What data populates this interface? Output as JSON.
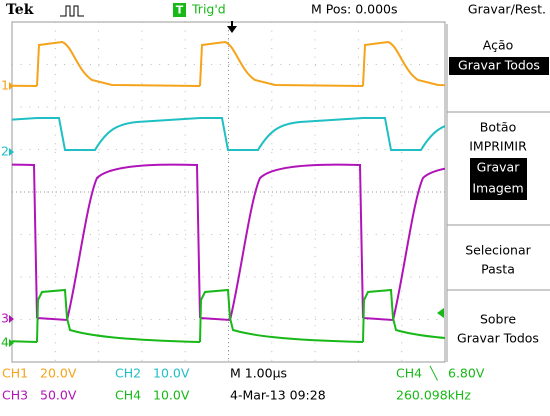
{
  "header": {
    "brand": "Tek",
    "trigger_icon": "T",
    "trigger_status": "Trig'd",
    "position": "M Pos: 0.000s",
    "menu_title": "Gravar/Rest."
  },
  "channel_markers": [
    "1",
    "2",
    "3",
    "4"
  ],
  "menu": [
    {
      "label": "Ação",
      "value": "Gravar Todos"
    },
    {
      "label": "Botão",
      "line2": "IMPRIMIR",
      "value": "Gravar",
      "value2": "Imagem"
    },
    {
      "label": "Selecionar",
      "line2": "Pasta"
    },
    {
      "label": "Sobre",
      "line2": "Gravar Todos"
    }
  ],
  "footer": {
    "ch1": "CH1",
    "ch1_scale": "20.0V",
    "ch2": "CH2",
    "ch2_scale": "10.0V",
    "timebase": "M 1.00µs",
    "trigger_source": "CH4",
    "trigger_slope": "╲",
    "trigger_level": "6.80V",
    "ch3": "CH3",
    "ch3_scale": "50.0V",
    "ch4": "CH4",
    "ch4_scale": "10.0V",
    "date": "4-Mar-13 09:28",
    "frequency": "260.098kHz"
  }
}
